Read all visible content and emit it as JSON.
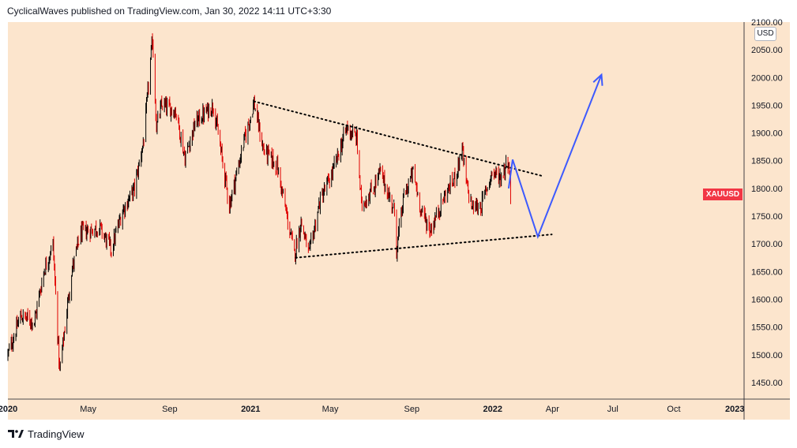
{
  "header": {
    "publisher": "CyclicalWaves published on TradingView.com, Jan 30, 2022 14:11 UTC+3:30"
  },
  "footer": {
    "brand": "TradingView"
  },
  "chart_data": {
    "type": "candlestick",
    "symbol": "XAUUSD",
    "currency": "USD",
    "ylim": [
      1420,
      2100
    ],
    "y_ticks": [
      "2100.00",
      "2050.00",
      "2000.00",
      "1950.00",
      "1900.00",
      "1850.00",
      "1800.00",
      "1750.00",
      "1700.00",
      "1650.00",
      "1600.00",
      "1550.00",
      "1500.00",
      "1450.00"
    ],
    "x_ticks": [
      "2020",
      "May",
      "Sep",
      "2021",
      "May",
      "Sep",
      "2022",
      "Apr",
      "Jul",
      "Oct",
      "2023"
    ],
    "x_tick_dates": [
      "2020-01-01",
      "2020-05-01",
      "2020-09-01",
      "2021-01-01",
      "2021-05-01",
      "2021-09-01",
      "2022-01-01",
      "2022-04-01",
      "2022-07-01",
      "2022-10-01",
      "2023-01-01"
    ],
    "xlim": [
      "2020-01-01",
      "2023-01-15"
    ],
    "last_price_label": "XAUUSD",
    "last_price": 1787,
    "colors": {
      "background": "#fce5cd",
      "up": "#000000",
      "down": "#e00000",
      "projection": "#3d5afe",
      "trendline": "#000000",
      "badge": "#f23645"
    },
    "price_path": [
      [
        "2020-01-01",
        1500
      ],
      [
        "2020-01-20",
        1570
      ],
      [
        "2020-02-10",
        1560
      ],
      [
        "2020-02-24",
        1650
      ],
      [
        "2020-03-09",
        1700
      ],
      [
        "2020-03-19",
        1470
      ],
      [
        "2020-04-06",
        1650
      ],
      [
        "2020-04-20",
        1720
      ],
      [
        "2020-05-18",
        1730
      ],
      [
        "2020-06-05",
        1690
      ],
      [
        "2020-06-22",
        1760
      ],
      [
        "2020-07-10",
        1800
      ],
      [
        "2020-07-24",
        1890
      ],
      [
        "2020-08-06",
        2070
      ],
      [
        "2020-08-12",
        1910
      ],
      [
        "2020-08-20",
        1950
      ],
      [
        "2020-09-10",
        1940
      ],
      [
        "2020-09-24",
        1855
      ],
      [
        "2020-10-10",
        1920
      ],
      [
        "2020-11-06",
        1950
      ],
      [
        "2020-11-30",
        1770
      ],
      [
        "2020-12-21",
        1880
      ],
      [
        "2021-01-06",
        1955
      ],
      [
        "2021-01-20",
        1870
      ],
      [
        "2021-02-10",
        1840
      ],
      [
        "2021-03-08",
        1680
      ],
      [
        "2021-03-18",
        1740
      ],
      [
        "2021-03-30",
        1680
      ],
      [
        "2021-04-15",
        1775
      ],
      [
        "2021-05-05",
        1830
      ],
      [
        "2021-05-26",
        1910
      ],
      [
        "2021-06-10",
        1890
      ],
      [
        "2021-06-17",
        1770
      ],
      [
        "2021-07-05",
        1800
      ],
      [
        "2021-07-15",
        1830
      ],
      [
        "2021-08-06",
        1760
      ],
      [
        "2021-08-09",
        1690
      ],
      [
        "2021-08-20",
        1785
      ],
      [
        "2021-09-03",
        1830
      ],
      [
        "2021-09-15",
        1760
      ],
      [
        "2021-09-29",
        1725
      ],
      [
        "2021-10-20",
        1785
      ],
      [
        "2021-11-05",
        1820
      ],
      [
        "2021-11-16",
        1870
      ],
      [
        "2021-11-22",
        1810
      ],
      [
        "2021-12-01",
        1765
      ],
      [
        "2021-12-15",
        1770
      ],
      [
        "2021-12-31",
        1830
      ],
      [
        "2022-01-13",
        1820
      ],
      [
        "2022-01-25",
        1853
      ],
      [
        "2022-01-28",
        1787
      ]
    ],
    "overlays": {
      "trendlines": [
        {
          "from": [
            "2021-01-06",
            1957
          ],
          "to": [
            "2022-03-15",
            1823
          ],
          "style": "dotted"
        },
        {
          "from": [
            "2021-03-10",
            1675
          ],
          "to": [
            "2022-03-31",
            1717
          ],
          "style": "dotted"
        }
      ],
      "projection_path": [
        {
          "points": [
            [
              "2022-01-25",
              1800
            ],
            [
              "2022-01-31",
              1852
            ],
            [
              "2022-03-10",
              1713
            ],
            [
              "2022-06-14",
              2005
            ]
          ],
          "arrow": true
        },
        {
          "points": [
            [
              "2022-01-25",
              1800
            ],
            [
              "2022-01-31",
              1852
            ],
            [
              "2022-03-10",
              1713
            ],
            [
              "2022-06-14",
              2005
            ]
          ],
          "arrow": false
        }
      ]
    }
  }
}
